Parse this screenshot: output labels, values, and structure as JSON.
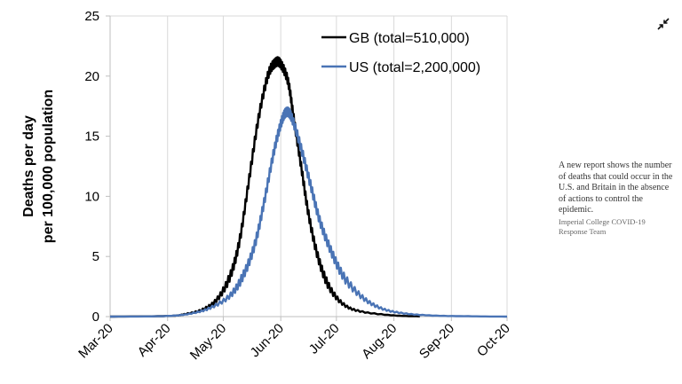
{
  "caption": {
    "text": "A new report shows the number of deaths that could occur in the U.S. and Britain in the absence of actions to control the epidemic.",
    "credit": "Imperial College COVID-19 Response Team"
  },
  "controls": {
    "collapse_icon": "collapse-arrows-icon"
  },
  "chart_data": {
    "type": "line",
    "title": "",
    "xlabel": "",
    "ylabel": "Deaths per day\nper 100,000 population",
    "x_tick_labels": [
      "Mar-20",
      "Apr-20",
      "May-20",
      "Jun-20",
      "Jul-20",
      "Aug-20",
      "Sep-20",
      "Oct-20"
    ],
    "x_range": [
      "2020-03-01",
      "2020-10-01"
    ],
    "ylim": [
      0,
      25
    ],
    "y_ticks": [
      0,
      5,
      10,
      15,
      20,
      25
    ],
    "grid": "vertical",
    "legend_position": "top-right",
    "series": [
      {
        "name": "GB (total=510,000)",
        "color": "#000000",
        "points": [
          [
            "2020-03-01",
            0
          ],
          [
            "2020-04-01",
            0.05
          ],
          [
            "2020-04-10",
            0.2
          ],
          [
            "2020-04-20",
            0.6
          ],
          [
            "2020-04-28",
            1.5
          ],
          [
            "2020-05-05",
            3.5
          ],
          [
            "2020-05-10",
            6.5
          ],
          [
            "2020-05-15",
            11.5
          ],
          [
            "2020-05-20",
            16.5
          ],
          [
            "2020-05-25",
            20.0
          ],
          [
            "2020-05-29",
            21.1
          ],
          [
            "2020-06-01",
            21.0
          ],
          [
            "2020-06-05",
            19.5
          ],
          [
            "2020-06-08",
            16.5
          ],
          [
            "2020-06-12",
            12.5
          ],
          [
            "2020-06-16",
            8.5
          ],
          [
            "2020-06-21",
            5.0
          ],
          [
            "2020-06-27",
            2.5
          ],
          [
            "2020-07-05",
            1.0
          ],
          [
            "2020-07-15",
            0.4
          ],
          [
            "2020-08-01",
            0.1
          ],
          [
            "2020-08-15",
            0.02
          ]
        ]
      },
      {
        "name": "US (total=2,200,000)",
        "color": "#4a74b5",
        "points": [
          [
            "2020-03-01",
            0
          ],
          [
            "2020-04-01",
            0.05
          ],
          [
            "2020-04-15",
            0.3
          ],
          [
            "2020-04-25",
            0.8
          ],
          [
            "2020-05-05",
            1.8
          ],
          [
            "2020-05-12",
            3.5
          ],
          [
            "2020-05-18",
            6.0
          ],
          [
            "2020-05-23",
            9.5
          ],
          [
            "2020-05-28",
            13.5
          ],
          [
            "2020-06-01",
            16.0
          ],
          [
            "2020-06-04",
            17.0
          ],
          [
            "2020-06-07",
            16.5
          ],
          [
            "2020-06-12",
            14.0
          ],
          [
            "2020-06-17",
            11.0
          ],
          [
            "2020-06-22",
            8.0
          ],
          [
            "2020-06-28",
            5.5
          ],
          [
            "2020-07-05",
            3.3
          ],
          [
            "2020-07-15",
            1.6
          ],
          [
            "2020-07-25",
            0.7
          ],
          [
            "2020-08-05",
            0.3
          ],
          [
            "2020-08-20",
            0.1
          ],
          [
            "2020-09-10",
            0.03
          ],
          [
            "2020-10-01",
            0
          ]
        ]
      }
    ]
  }
}
